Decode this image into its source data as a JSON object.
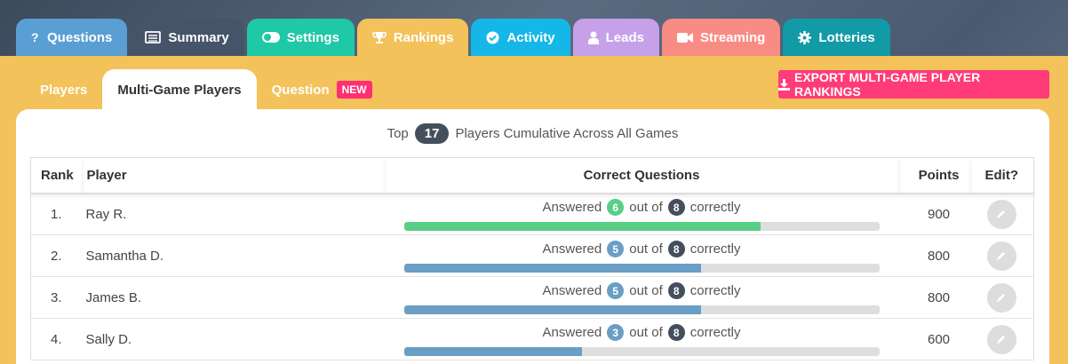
{
  "tabs": [
    {
      "label": "Questions",
      "icon": "question-icon",
      "color": "#5a9fd4"
    },
    {
      "label": "Summary",
      "icon": "list-icon",
      "color": "#455469"
    },
    {
      "label": "Settings",
      "icon": "toggle-icon",
      "color": "#1fc8a6"
    },
    {
      "label": "Rankings",
      "icon": "trophy-icon",
      "color": "#f3c25a"
    },
    {
      "label": "Activity",
      "icon": "check-circle-icon",
      "color": "#15b7e8"
    },
    {
      "label": "Leads",
      "icon": "user-icon",
      "color": "#c6a0e8"
    },
    {
      "label": "Streaming",
      "icon": "video-icon",
      "color": "#f98b85"
    },
    {
      "label": "Lotteries",
      "icon": "gear-icon",
      "color": "#129aa6"
    }
  ],
  "subtabs": {
    "players": "Players",
    "multi_game_players": "Multi-Game Players",
    "question": "Question",
    "new_badge": "NEW"
  },
  "export_button": "EXPORT MULTI-GAME PLAYER RANKINGS",
  "headline": {
    "prefix": "Top",
    "count": "17",
    "suffix": "Players Cumulative Across All Games"
  },
  "table": {
    "headers": {
      "rank": "Rank",
      "player": "Player",
      "correct": "Correct Questions",
      "points": "Points",
      "edit": "Edit?"
    },
    "answered_word": "Answered",
    "out_of_word": "out of",
    "correctly_word": "correctly",
    "colors": {
      "top": "#58cf86",
      "other": "#6a9ec5",
      "total": "#444f5e"
    },
    "rows": [
      {
        "rank": "1.",
        "player": "Ray R.",
        "correct": "6",
        "total": "8",
        "points": "900",
        "fraction": 0.75
      },
      {
        "rank": "2.",
        "player": "Samantha D.",
        "correct": "5",
        "total": "8",
        "points": "800",
        "fraction": 0.625
      },
      {
        "rank": "3.",
        "player": "James B.",
        "correct": "5",
        "total": "8",
        "points": "800",
        "fraction": 0.625
      },
      {
        "rank": "4.",
        "player": "Sally D.",
        "correct": "3",
        "total": "8",
        "points": "600",
        "fraction": 0.375
      }
    ]
  }
}
